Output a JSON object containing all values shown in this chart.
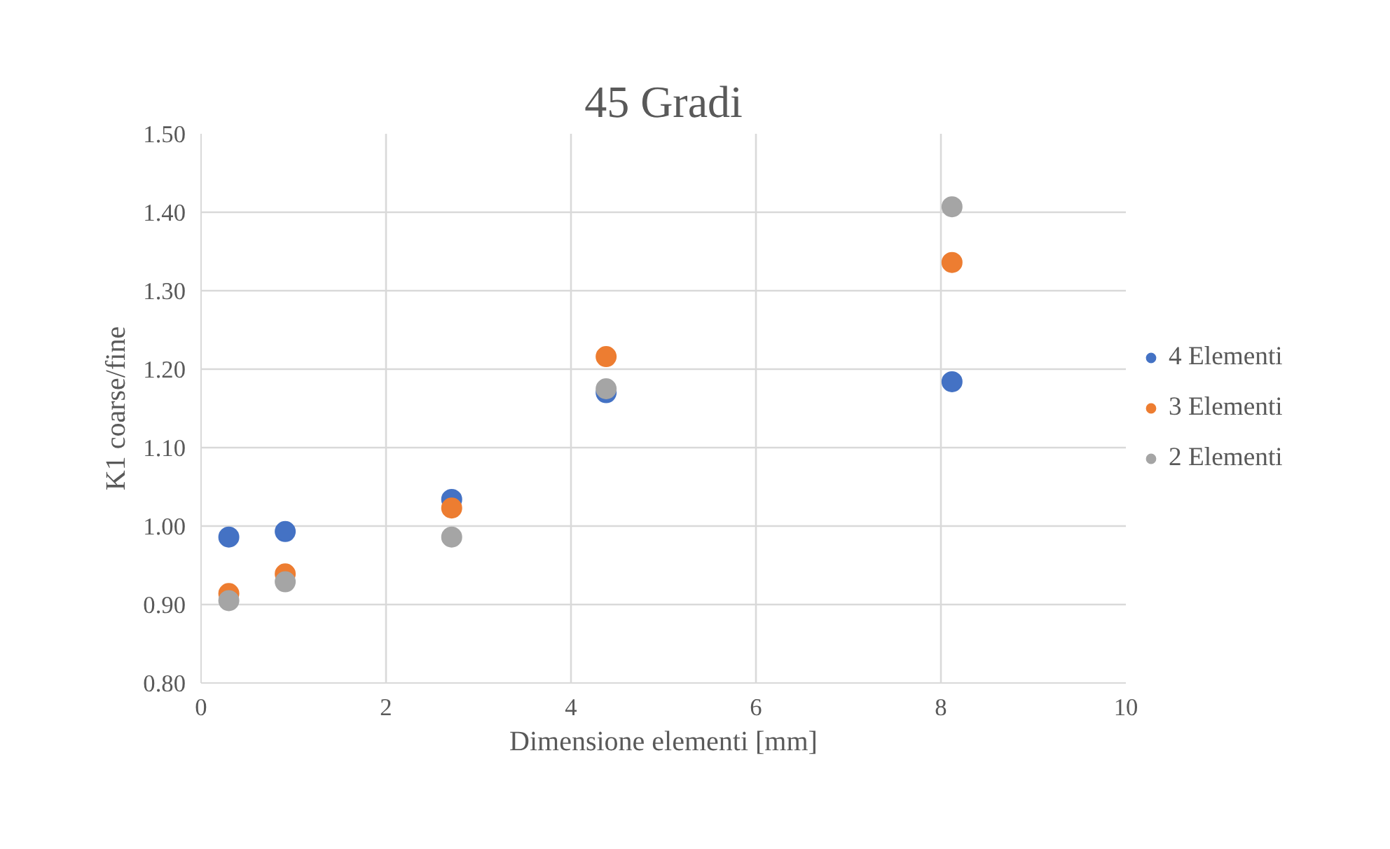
{
  "chart_data": {
    "type": "scatter",
    "title": "45 Gradi",
    "xlabel": "Dimensione elementi [mm]",
    "ylabel": "K1 coarse/fine",
    "x": [
      0.3,
      0.91,
      2.71,
      4.38,
      8.12
    ],
    "series": [
      {
        "name": "4 Elementi",
        "color": "#4472c4",
        "values": [
          0.986,
          0.993,
          1.034,
          1.17,
          1.184
        ]
      },
      {
        "name": "3 Elementi",
        "color": "#ed7d31",
        "values": [
          0.914,
          0.939,
          1.023,
          1.216,
          1.336
        ]
      },
      {
        "name": "2 Elementi",
        "color": "#a5a5a5",
        "values": [
          0.905,
          0.929,
          0.986,
          1.175,
          1.407
        ]
      }
    ],
    "xlim": [
      0,
      10
    ],
    "xticks": [
      0,
      2,
      4,
      6,
      8,
      10
    ],
    "ylim": [
      0.8,
      1.5
    ],
    "yticks": [
      {
        "value": 0.8,
        "label": "0.80"
      },
      {
        "value": 0.9,
        "label": "0.90"
      },
      {
        "value": 1.0,
        "label": "1.00"
      },
      {
        "value": 1.1,
        "label": "1.10"
      },
      {
        "value": 1.2,
        "label": "1.20"
      },
      {
        "value": 1.3,
        "label": "1.30"
      },
      {
        "value": 1.4,
        "label": "1.40"
      },
      {
        "value": 1.5,
        "label": "1.50"
      }
    ],
    "grid": true,
    "legend": "right",
    "marker": "circle"
  }
}
